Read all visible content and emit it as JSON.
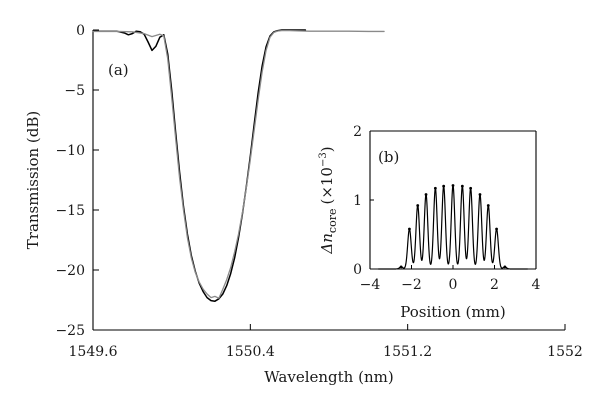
{
  "chart_data": [
    {
      "type": "line",
      "panel_label": "(a)",
      "xlabel": "Wavelength (nm)",
      "ylabel": "Transmission (dB)",
      "xlim": [
        1549.6,
        1552.0
      ],
      "ylim": [
        -25,
        0
      ],
      "xticks": [
        1549.6,
        1550.4,
        1551.2,
        1552.0
      ],
      "xtick_labels": [
        "1549.6",
        "1550.4",
        "1551.2",
        "1552"
      ],
      "yticks": [
        0,
        -5,
        -10,
        -15,
        -20,
        -25
      ],
      "ytick_labels": [
        "0",
        "−5",
        "−10",
        "−15",
        "−20",
        "−25"
      ],
      "grid": false,
      "series": [
        {
          "color": "#000000",
          "x": [
            1549.6,
            1549.72,
            1549.76,
            1549.78,
            1549.8,
            1549.82,
            1549.84,
            1549.86,
            1549.88,
            1549.9,
            1549.92,
            1549.94,
            1549.96,
            1549.98,
            1550.0,
            1550.02,
            1550.04,
            1550.06,
            1550.08,
            1550.1,
            1550.12,
            1550.14,
            1550.16,
            1550.18,
            1550.2,
            1550.22,
            1550.24,
            1550.26,
            1550.28,
            1550.3,
            1550.32,
            1550.34,
            1550.36,
            1550.38,
            1550.4,
            1550.42,
            1550.44,
            1550.46,
            1550.48,
            1550.5,
            1550.52,
            1550.54,
            1550.56,
            1550.58,
            1550.6,
            1550.62,
            1550.64,
            1550.66,
            1550.68
          ],
          "y": [
            -0.1,
            -0.1,
            -0.25,
            -0.4,
            -0.3,
            -0.1,
            -0.15,
            -0.35,
            -1.0,
            -1.7,
            -1.35,
            -0.6,
            -0.4,
            -2.0,
            -5.0,
            -8.5,
            -11.8,
            -14.7,
            -17.0,
            -18.8,
            -20.1,
            -21.1,
            -21.8,
            -22.3,
            -22.55,
            -22.6,
            -22.4,
            -22.0,
            -21.3,
            -20.3,
            -19.0,
            -17.3,
            -15.3,
            -13.0,
            -10.5,
            -7.8,
            -5.2,
            -3.0,
            -1.4,
            -0.5,
            -0.15,
            -0.05,
            0,
            0,
            0,
            0,
            0,
            0,
            0
          ]
        },
        {
          "color": "#8a8a8a",
          "x": [
            1549.6,
            1549.72,
            1549.8,
            1549.86,
            1549.9,
            1549.94,
            1549.96,
            1549.98,
            1550.0,
            1550.02,
            1550.04,
            1550.06,
            1550.08,
            1550.1,
            1550.12,
            1550.14,
            1550.16,
            1550.18,
            1550.2,
            1550.22,
            1550.24,
            1550.26,
            1550.28,
            1550.3,
            1550.32,
            1550.34,
            1550.36,
            1550.38,
            1550.4,
            1550.42,
            1550.44,
            1550.46,
            1550.48,
            1550.5,
            1550.52,
            1550.54,
            1550.56,
            1550.6,
            1550.7,
            1550.8,
            1550.9,
            1551.0,
            1551.08
          ],
          "y": [
            -0.12,
            -0.12,
            -0.15,
            -0.3,
            -0.55,
            -0.35,
            -0.5,
            -2.4,
            -5.6,
            -9.0,
            -12.3,
            -15.0,
            -17.3,
            -19.0,
            -20.2,
            -21.0,
            -21.6,
            -22.0,
            -22.3,
            -22.2,
            -22.35,
            -21.6,
            -20.8,
            -19.8,
            -18.5,
            -17.0,
            -15.2,
            -13.1,
            -10.8,
            -8.3,
            -5.8,
            -3.5,
            -1.7,
            -0.6,
            -0.2,
            -0.08,
            -0.05,
            -0.05,
            -0.1,
            -0.1,
            -0.1,
            -0.12,
            -0.12
          ]
        }
      ]
    },
    {
      "type": "line",
      "panel_label": "(b)",
      "xlabel": "Position (mm)",
      "ylabel_symbol": "Δn",
      "ylabel_subscript": "core",
      "ylabel_unit_open": "(×10",
      "ylabel_unit_exponent": "−3",
      "ylabel_unit_close": ")",
      "xlim": [
        -4,
        4
      ],
      "ylim": [
        0,
        2
      ],
      "xticks": [
        -4,
        -2,
        0,
        2,
        4
      ],
      "xtick_labels": [
        "−4",
        "−2",
        "0",
        "2",
        "4"
      ],
      "yticks": [
        0,
        1,
        2
      ],
      "ytick_labels": [
        "0",
        "1",
        "2"
      ],
      "grid": false,
      "peak_positions": [
        -2.5,
        -2.1,
        -1.7,
        -1.3,
        -0.85,
        -0.45,
        0.0,
        0.45,
        0.85,
        1.3,
        1.7,
        2.1,
        2.5
      ],
      "peak_values": [
        0.03,
        0.58,
        0.92,
        1.08,
        1.17,
        1.2,
        1.21,
        1.2,
        1.17,
        1.08,
        0.92,
        0.58,
        0.03
      ]
    }
  ]
}
